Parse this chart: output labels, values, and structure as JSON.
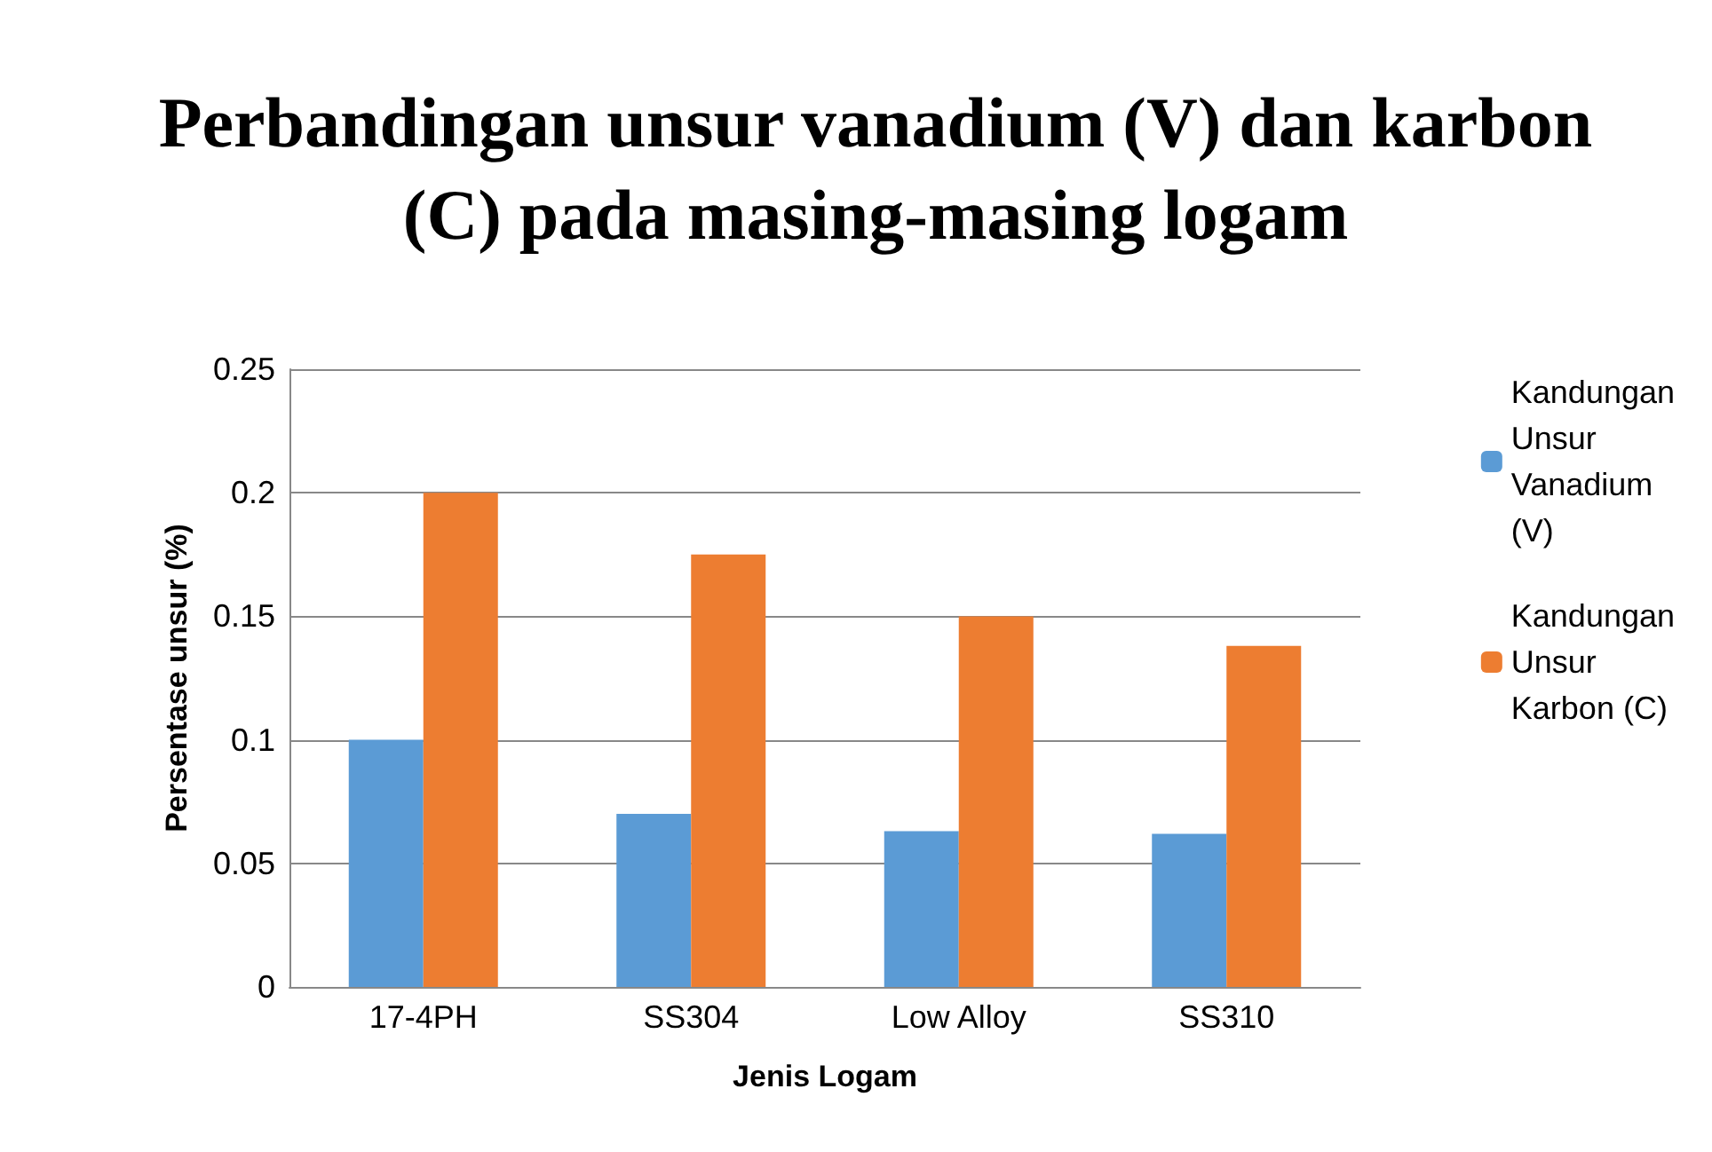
{
  "chart_data": {
    "type": "bar",
    "title": "Perbandingan unsur vanadium (V) dan karbon (C) pada masing-masing logam",
    "xlabel": "Jenis Logam",
    "ylabel": "Persentase unsur (%)",
    "categories": [
      "17-4PH",
      "SS304",
      "Low Alloy",
      "SS310"
    ],
    "series": [
      {
        "name": "Kandungan Unsur Vanadium (V)",
        "color": "#5b9bd5",
        "values": [
          0.1,
          0.07,
          0.063,
          0.062
        ]
      },
      {
        "name": "Kandungan Unsur Karbon (C)",
        "color": "#ed7d31",
        "values": [
          0.2,
          0.175,
          0.15,
          0.138
        ]
      }
    ],
    "ylim": [
      0,
      0.25
    ],
    "yticks": [
      0,
      0.05,
      0.1,
      0.15,
      0.2,
      0.25
    ],
    "grid": "y",
    "legend": "right"
  }
}
